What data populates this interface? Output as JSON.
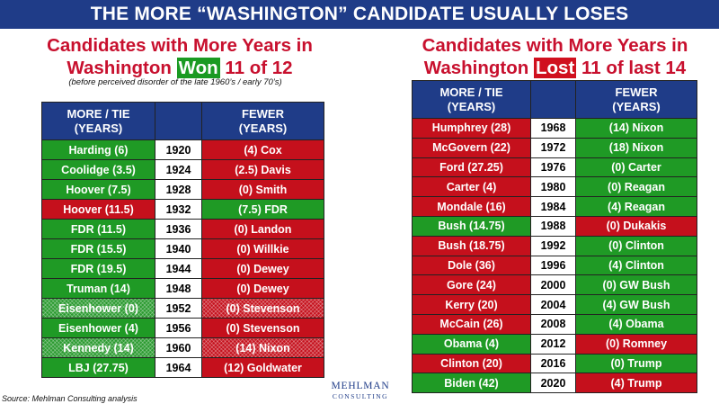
{
  "banner_title": "THE MORE “WASHINGTON” CANDIDATE USUALLY LOSES",
  "left": {
    "heading_line1": "Candidates with More Years in",
    "heading_pre": "Washington ",
    "heading_highlight": "Won",
    "heading_post": " 11 of 12",
    "subnote": "(before perceived disorder of the late 1960’s / early 70’s)",
    "col_more": "MORE / TIE\n(YEARS)",
    "col_fewer": "FEWER\n(YEARS)",
    "rows": [
      {
        "more": "Harding (6)",
        "year": "1920",
        "fewer": "(4) Cox",
        "more_style": "c-green",
        "fewer_style": "c-red"
      },
      {
        "more": "Coolidge (3.5)",
        "year": "1924",
        "fewer": "(2.5) Davis",
        "more_style": "c-green",
        "fewer_style": "c-red"
      },
      {
        "more": "Hoover (7.5)",
        "year": "1928",
        "fewer": "(0) Smith",
        "more_style": "c-green",
        "fewer_style": "c-red"
      },
      {
        "more": "Hoover (11.5)",
        "year": "1932",
        "fewer": "(7.5) FDR",
        "more_style": "c-red",
        "fewer_style": "c-green"
      },
      {
        "more": "FDR (11.5)",
        "year": "1936",
        "fewer": "(0) Landon",
        "more_style": "c-green",
        "fewer_style": "c-red"
      },
      {
        "more": "FDR (15.5)",
        "year": "1940",
        "fewer": "(0) Willkie",
        "more_style": "c-green",
        "fewer_style": "c-red"
      },
      {
        "more": "FDR (19.5)",
        "year": "1944",
        "fewer": "(0) Dewey",
        "more_style": "c-green",
        "fewer_style": "c-red"
      },
      {
        "more": "Truman (14)",
        "year": "1948",
        "fewer": "(0) Dewey",
        "more_style": "c-green",
        "fewer_style": "c-red"
      },
      {
        "more": "Eisenhower (0)",
        "year": "1952",
        "fewer": "(0) Stevenson",
        "more_style": "hatch-green",
        "fewer_style": "hatch-red"
      },
      {
        "more": "Eisenhower (4)",
        "year": "1956",
        "fewer": "(0) Stevenson",
        "more_style": "c-green",
        "fewer_style": "c-red"
      },
      {
        "more": "Kennedy (14)",
        "year": "1960",
        "fewer": "(14) Nixon",
        "more_style": "hatch-green",
        "fewer_style": "hatch-red"
      },
      {
        "more": "LBJ (27.75)",
        "year": "1964",
        "fewer": "(12) Goldwater",
        "more_style": "c-green",
        "fewer_style": "c-red"
      }
    ]
  },
  "right": {
    "heading_line1": "Candidates with More Years in",
    "heading_pre": "Washington ",
    "heading_highlight": "Lost",
    "heading_post": " 11 of last 14",
    "col_more": "MORE / TIE\n(YEARS)",
    "col_fewer": "FEWER\n(YEARS)",
    "rows": [
      {
        "more": "Humphrey (28)",
        "year": "1968",
        "fewer": "(14) Nixon",
        "more_style": "c-red",
        "fewer_style": "c-green"
      },
      {
        "more": "McGovern (22)",
        "year": "1972",
        "fewer": "(18) Nixon",
        "more_style": "c-red",
        "fewer_style": "c-green"
      },
      {
        "more": "Ford (27.25)",
        "year": "1976",
        "fewer": "(0) Carter",
        "more_style": "c-red",
        "fewer_style": "c-green"
      },
      {
        "more": "Carter (4)",
        "year": "1980",
        "fewer": "(0) Reagan",
        "more_style": "c-red",
        "fewer_style": "c-green"
      },
      {
        "more": "Mondale (16)",
        "year": "1984",
        "fewer": "(4) Reagan",
        "more_style": "c-red",
        "fewer_style": "c-green"
      },
      {
        "more": "Bush (14.75)",
        "year": "1988",
        "fewer": "(0) Dukakis",
        "more_style": "c-green",
        "fewer_style": "c-red"
      },
      {
        "more": "Bush (18.75)",
        "year": "1992",
        "fewer": "(0) Clinton",
        "more_style": "c-red",
        "fewer_style": "c-green"
      },
      {
        "more": "Dole (36)",
        "year": "1996",
        "fewer": "(4) Clinton",
        "more_style": "c-red",
        "fewer_style": "c-green"
      },
      {
        "more": "Gore (24)",
        "year": "2000",
        "fewer": "(0) GW Bush",
        "more_style": "c-red",
        "fewer_style": "c-green"
      },
      {
        "more": "Kerry (20)",
        "year": "2004",
        "fewer": "(4) GW Bush",
        "more_style": "c-red",
        "fewer_style": "c-green"
      },
      {
        "more": "McCain (26)",
        "year": "2008",
        "fewer": "(4) Obama",
        "more_style": "c-red",
        "fewer_style": "c-green"
      },
      {
        "more": "Obama (4)",
        "year": "2012",
        "fewer": "(0) Romney",
        "more_style": "c-green",
        "fewer_style": "c-red"
      },
      {
        "more": "Clinton (20)",
        "year": "2016",
        "fewer": "(0) Trump",
        "more_style": "c-red",
        "fewer_style": "c-green"
      },
      {
        "more": "Biden (42)",
        "year": "2020",
        "fewer": "(4) Trump",
        "more_style": "c-green",
        "fewer_style": "c-red"
      }
    ]
  },
  "source": "Source: Mehlman Consulting analysis",
  "logo": {
    "line1": "MEHLMAN",
    "line2": "CONSULTING"
  },
  "colors": {
    "navy": "#1f3c88",
    "green": "#1f9a25",
    "red": "#c5101c"
  }
}
